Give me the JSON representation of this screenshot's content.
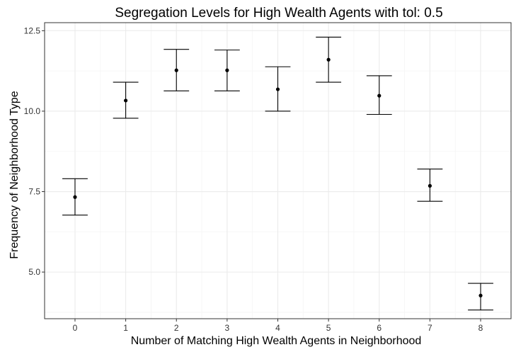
{
  "chart_data": {
    "type": "scatter",
    "title": "Segregation Levels for High Wealth Agents with tol: 0.5",
    "xlabel": "Number of Matching High  Wealth Agents in Neighborhood",
    "ylabel": "Frequency of Neighborhood Type",
    "x": [
      0,
      1,
      2,
      3,
      4,
      5,
      6,
      7,
      8
    ],
    "x_tick_labels": [
      "0",
      "1",
      "2",
      "3",
      "4",
      "5",
      "6",
      "7",
      "8"
    ],
    "values": [
      7.33,
      10.33,
      11.27,
      11.27,
      10.68,
      11.6,
      10.48,
      7.68,
      4.27
    ],
    "lower": [
      6.77,
      9.78,
      10.63,
      10.63,
      10.0,
      10.9,
      9.9,
      7.2,
      3.82
    ],
    "upper": [
      7.9,
      10.9,
      11.92,
      11.9,
      11.38,
      12.3,
      11.1,
      8.2,
      4.65
    ],
    "y_ticks": [
      5.0,
      7.5,
      10.0,
      12.5
    ],
    "y_tick_labels": [
      "5.0",
      "7.5",
      "10.0",
      "12.5"
    ],
    "xlim": [
      -0.6,
      8.6
    ],
    "ylim": [
      3.55,
      12.75
    ],
    "grid": true,
    "colors": {
      "points": "#000000",
      "grid_major": "#ebebeb",
      "grid_minor": "#f5f5f5",
      "panel_border": "#333333"
    }
  }
}
